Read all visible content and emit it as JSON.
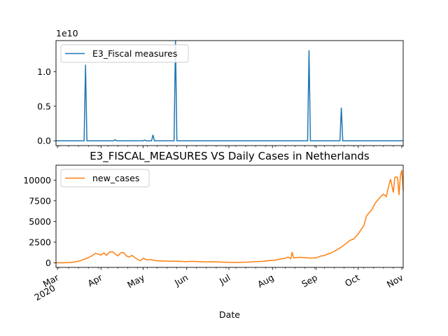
{
  "chart_data": [
    {
      "type": "line",
      "title": "",
      "offset_text": "1e10",
      "series_color": "#1f77b4",
      "legend": {
        "label": "E3_Fiscal measures",
        "placement": "upper-left"
      },
      "ylim": [
        -700000000.0,
        14500000000.0
      ],
      "yticks": [
        {
          "value": 0,
          "label": "0.0"
        },
        {
          "value": 5000000000.0,
          "label": "0.5"
        },
        {
          "value": 10000000000.0,
          "label": "1.0"
        }
      ],
      "x_range": [
        "2020-02-29",
        "2020-11-02"
      ],
      "series": [
        {
          "name": "E3_Fiscal measures",
          "points": [
            [
              "2020-02-29",
              0
            ],
            [
              "2020-03-20",
              0
            ],
            [
              "2020-03-21",
              11000000000.0
            ],
            [
              "2020-03-22",
              0
            ],
            [
              "2020-04-10",
              0
            ],
            [
              "2020-04-11",
              150000000.0
            ],
            [
              "2020-04-12",
              0
            ],
            [
              "2020-05-01",
              0
            ],
            [
              "2020-05-02",
              100000000.0
            ],
            [
              "2020-05-03",
              0
            ],
            [
              "2020-05-07",
              0
            ],
            [
              "2020-05-08",
              850000000.0
            ],
            [
              "2020-05-09",
              0
            ],
            [
              "2020-05-23",
              0
            ],
            [
              "2020-05-24",
              14500000000.0
            ],
            [
              "2020-05-25",
              0
            ],
            [
              "2020-08-26",
              0
            ],
            [
              "2020-08-27",
              13100000000.0
            ],
            [
              "2020-08-28",
              0
            ],
            [
              "2020-09-18",
              0
            ],
            [
              "2020-09-19",
              4800000000.0
            ],
            [
              "2020-09-20",
              0
            ],
            [
              "2020-11-02",
              0
            ]
          ]
        }
      ]
    },
    {
      "type": "line",
      "title": "E3_FISCAL_MEASURES VS Daily Cases in Netherlands",
      "xlabel": "Date",
      "series_color": "#ff7f0e",
      "legend": {
        "label": "new_cases",
        "placement": "upper-left"
      },
      "ylim": [
        -550,
        11800
      ],
      "yticks": [
        {
          "value": 0,
          "label": "0"
        },
        {
          "value": 2500,
          "label": "2500"
        },
        {
          "value": 5000,
          "label": "5000"
        },
        {
          "value": 7500,
          "label": "7500"
        },
        {
          "value": 10000,
          "label": "10000"
        }
      ],
      "x_range": [
        "2020-02-29",
        "2020-11-02"
      ],
      "xticks": [
        {
          "date": "2020-03-01",
          "label": "Mar",
          "sublabel": "2020"
        },
        {
          "date": "2020-04-01",
          "label": "Apr"
        },
        {
          "date": "2020-05-01",
          "label": "May"
        },
        {
          "date": "2020-06-01",
          "label": "Jun"
        },
        {
          "date": "2020-07-01",
          "label": "Jul"
        },
        {
          "date": "2020-08-01",
          "label": "Aug"
        },
        {
          "date": "2020-09-01",
          "label": "Sep"
        },
        {
          "date": "2020-10-01",
          "label": "Oct"
        },
        {
          "date": "2020-11-01",
          "label": "Nov"
        }
      ],
      "series": [
        {
          "name": "new_cases",
          "points": [
            [
              "2020-02-29",
              10
            ],
            [
              "2020-03-05",
              15
            ],
            [
              "2020-03-10",
              40
            ],
            [
              "2020-03-14",
              120
            ],
            [
              "2020-03-18",
              300
            ],
            [
              "2020-03-22",
              550
            ],
            [
              "2020-03-26",
              900
            ],
            [
              "2020-03-28",
              1150
            ],
            [
              "2020-03-30",
              1050
            ],
            [
              "2020-04-01",
              950
            ],
            [
              "2020-04-03",
              1200
            ],
            [
              "2020-04-05",
              900
            ],
            [
              "2020-04-07",
              1300
            ],
            [
              "2020-04-09",
              1350
            ],
            [
              "2020-04-11",
              1100
            ],
            [
              "2020-04-13",
              850
            ],
            [
              "2020-04-15",
              1200
            ],
            [
              "2020-04-17",
              1250
            ],
            [
              "2020-04-19",
              850
            ],
            [
              "2020-04-21",
              700
            ],
            [
              "2020-04-23",
              900
            ],
            [
              "2020-04-25",
              650
            ],
            [
              "2020-04-27",
              400
            ],
            [
              "2020-04-29",
              250
            ],
            [
              "2020-05-01",
              550
            ],
            [
              "2020-05-04",
              350
            ],
            [
              "2020-05-06",
              400
            ],
            [
              "2020-05-09",
              300
            ],
            [
              "2020-05-12",
              230
            ],
            [
              "2020-05-16",
              230
            ],
            [
              "2020-05-20",
              180
            ],
            [
              "2020-05-25",
              200
            ],
            [
              "2020-05-31",
              150
            ],
            [
              "2020-06-05",
              180
            ],
            [
              "2020-06-10",
              150
            ],
            [
              "2020-06-15",
              120
            ],
            [
              "2020-06-20",
              140
            ],
            [
              "2020-06-25",
              90
            ],
            [
              "2020-07-01",
              60
            ],
            [
              "2020-07-08",
              50
            ],
            [
              "2020-07-15",
              90
            ],
            [
              "2020-07-20",
              150
            ],
            [
              "2020-07-25",
              180
            ],
            [
              "2020-07-31",
              300
            ],
            [
              "2020-08-04",
              350
            ],
            [
              "2020-08-07",
              480
            ],
            [
              "2020-08-10",
              550
            ],
            [
              "2020-08-12",
              700
            ],
            [
              "2020-08-14",
              500
            ],
            [
              "2020-08-15",
              1300
            ],
            [
              "2020-08-16",
              600
            ],
            [
              "2020-08-20",
              680
            ],
            [
              "2020-08-24",
              620
            ],
            [
              "2020-08-28",
              580
            ],
            [
              "2020-09-01",
              600
            ],
            [
              "2020-09-04",
              800
            ],
            [
              "2020-09-07",
              900
            ],
            [
              "2020-09-10",
              1100
            ],
            [
              "2020-09-13",
              1300
            ],
            [
              "2020-09-16",
              1600
            ],
            [
              "2020-09-19",
              1900
            ],
            [
              "2020-09-22",
              2300
            ],
            [
              "2020-09-25",
              2700
            ],
            [
              "2020-09-28",
              2900
            ],
            [
              "2020-10-01",
              3500
            ],
            [
              "2020-10-03",
              4000
            ],
            [
              "2020-10-05",
              4500
            ],
            [
              "2020-10-07",
              5700
            ],
            [
              "2020-10-09",
              6100
            ],
            [
              "2020-10-11",
              6500
            ],
            [
              "2020-10-13",
              7200
            ],
            [
              "2020-10-15",
              7600
            ],
            [
              "2020-10-17",
              8000
            ],
            [
              "2020-10-19",
              8300
            ],
            [
              "2020-10-21",
              8000
            ],
            [
              "2020-10-23",
              9500
            ],
            [
              "2020-10-24",
              10100
            ],
            [
              "2020-10-25",
              9300
            ],
            [
              "2020-10-26",
              8500
            ],
            [
              "2020-10-27",
              10300
            ],
            [
              "2020-10-28",
              10400
            ],
            [
              "2020-10-29",
              10300
            ],
            [
              "2020-10-30",
              8200
            ],
            [
              "2020-10-31",
              10500
            ],
            [
              "2020-11-01",
              11200
            ],
            [
              "2020-11-02",
              8700
            ]
          ]
        }
      ]
    }
  ]
}
